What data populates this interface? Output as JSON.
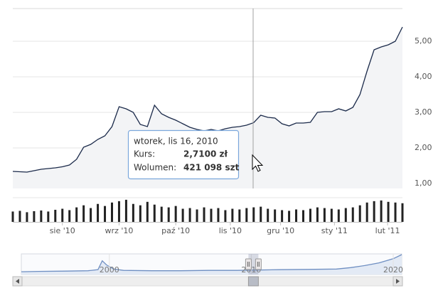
{
  "chart_data": [
    {
      "type": "line",
      "series": [
        {
          "color": "#1b2a4a",
          "values": [
            1.34,
            1.33,
            1.32,
            1.36,
            1.4,
            1.42,
            1.44,
            1.47,
            1.52,
            1.68,
            2.02,
            2.1,
            2.24,
            2.34,
            2.6,
            3.16,
            3.1,
            3.0,
            2.66,
            2.6,
            3.2,
            2.96,
            2.86,
            2.78,
            2.68,
            2.58,
            2.52,
            2.48,
            2.52,
            2.48,
            2.54,
            2.58,
            2.6,
            2.64,
            2.71,
            2.92,
            2.86,
            2.84,
            2.68,
            2.62,
            2.7,
            2.7,
            2.72,
            3.0,
            3.02,
            3.02,
            3.1,
            3.04,
            3.14,
            3.5,
            4.16,
            4.76,
            4.84,
            4.9,
            5.0,
            5.4
          ]
        }
      ],
      "area_color": "#f3f4f6",
      "xlim": [
        0,
        55
      ],
      "xticks": [
        {
          "value": 7,
          "label": "sie '10"
        },
        {
          "value": 15,
          "label": "wrz '10"
        },
        {
          "value": 23,
          "label": "paź '10"
        },
        {
          "value": 30.7,
          "label": "lis '10"
        },
        {
          "value": 37.8,
          "label": "gru '10"
        },
        {
          "value": 45.4,
          "label": "sty '11"
        },
        {
          "value": 52.9,
          "label": "lut '11"
        }
      ],
      "ylim": [
        0.86,
        5.92
      ],
      "yticks": [
        {
          "value": 1,
          "label": "1,00"
        },
        {
          "value": 2,
          "label": "2,00"
        },
        {
          "value": 3,
          "label": "3,00"
        },
        {
          "value": 4,
          "label": "4,00"
        },
        {
          "value": 5,
          "label": "5,00"
        }
      ],
      "grid": true
    },
    {
      "type": "bar",
      "series": [
        {
          "color": "#222222",
          "values": [
            300000,
            320000,
            280000,
            310000,
            330000,
            300000,
            350000,
            380000,
            340000,
            420000,
            480000,
            400000,
            520000,
            460000,
            560000,
            600000,
            640000,
            520000,
            480000,
            580000,
            500000,
            440000,
            420000,
            460000,
            380000,
            400000,
            360000,
            420000,
            380000,
            400000,
            340000,
            380000,
            360000,
            400000,
            421098,
            440000,
            380000,
            360000,
            340000,
            320000,
            360000,
            340000,
            380000,
            420000,
            400000,
            380000,
            360000,
            400000,
            420000,
            480000,
            560000,
            600000,
            620000,
            580000,
            560000,
            540000
          ]
        }
      ],
      "ylim": [
        0,
        700000
      ]
    },
    {
      "type": "area",
      "x": [
        1993.8,
        1995,
        1997,
        1998.5,
        1999.2,
        1999.5,
        1999.8,
        2000.3,
        2001,
        2003,
        2005,
        2007,
        2009,
        2010.5,
        2012,
        2014,
        2016,
        2017,
        2018,
        2019,
        2020,
        2020.6
      ],
      "series": [
        {
          "color": "#6f8fc2",
          "values": [
            0.8,
            0.9,
            1.0,
            1.1,
            1.4,
            4.0,
            2.8,
            1.6,
            1.2,
            1.1,
            1.1,
            1.2,
            1.2,
            1.3,
            1.4,
            1.5,
            1.6,
            2.0,
            2.6,
            3.4,
            4.6,
            5.8
          ]
        }
      ],
      "xlim": [
        1993.8,
        2020.6
      ],
      "xticks": [
        2000,
        2010,
        2020
      ],
      "ylim": [
        0,
        6
      ],
      "range": [
        2009.8,
        2010.5
      ]
    }
  ],
  "tooltip": {
    "date": "wtorek, lis 16, 2010",
    "rows": [
      [
        "Kurs:",
        "2,7100 zł"
      ],
      [
        "Wolumen:",
        "421 098 szt"
      ]
    ]
  }
}
